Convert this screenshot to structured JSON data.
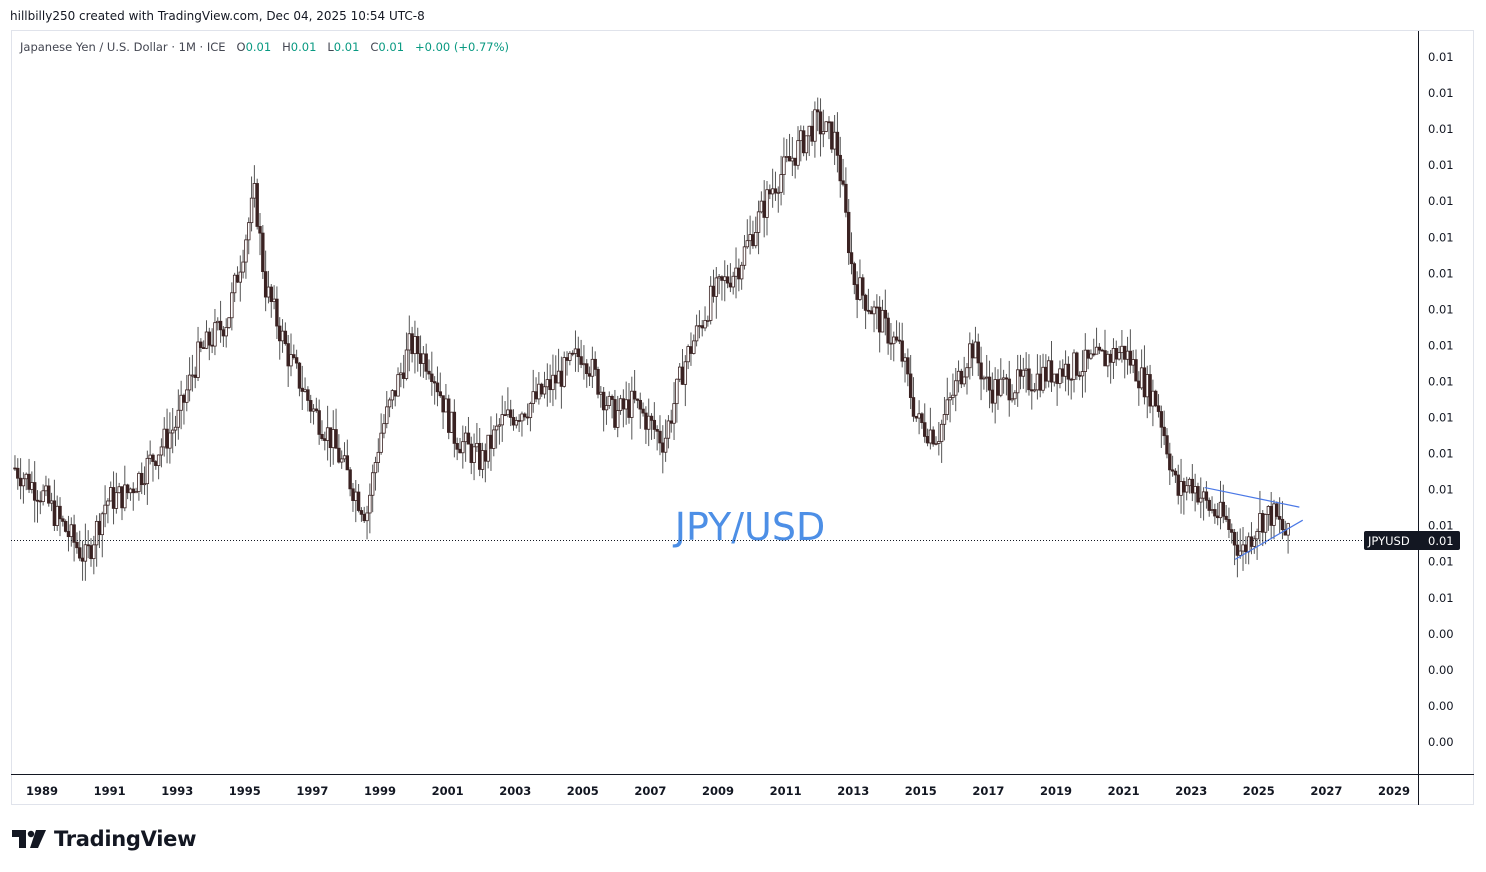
{
  "credit_line": "hillbilly250 created with TradingView.com, Dec 04, 2025 10:54 UTC-8",
  "legend": {
    "symbol": "Japanese Yen / U.S. Dollar · 1M · ICE",
    "open_label": "O",
    "open": "0.01",
    "high_label": "H",
    "high": "0.01",
    "low_label": "L",
    "low": "0.01",
    "close_label": "C",
    "close": "0.01",
    "change": "+0.00 (+0.77%)"
  },
  "watermark": "JPY/USD",
  "brand": "TradingView",
  "price_badge": {
    "symbol": "JPYUSD",
    "value": "0.01"
  },
  "colors": {
    "candle_up": "#ffffff",
    "candle_body": "#3a2222",
    "wick": "#555555",
    "trendline": "#4a78e6",
    "badge_bg": "#131722",
    "watermark": "#4d8fe6"
  },
  "icons": {
    "brand_logo": "tradingview-logo-icon"
  },
  "chart_data": {
    "type": "candlestick",
    "interval": "1M",
    "y_axis_labels": [
      "0.01",
      "0.01",
      "0.01",
      "0.01",
      "0.01",
      "0.01",
      "0.01",
      "0.01",
      "0.01",
      "0.01",
      "0.01",
      "0.01",
      "0.01",
      "0.01",
      "0.01",
      "0.01",
      "0.00",
      "0.00",
      "0.00",
      "0.00"
    ],
    "x_axis_labels": [
      "1989",
      "1991",
      "1993",
      "1995",
      "1997",
      "1999",
      "2001",
      "2003",
      "2005",
      "2007",
      "2009",
      "2011",
      "2013",
      "2015",
      "2017",
      "2019",
      "2021",
      "2023",
      "2025",
      "2027",
      "2029"
    ],
    "ylim": [
      0.0035,
      0.014
    ],
    "current_price": 0.0066,
    "series": [
      {
        "name": "JPYUSD",
        "points": [
          [
            1988.2,
            0.0077
          ],
          [
            1989.0,
            0.0073
          ],
          [
            1989.5,
            0.0069
          ],
          [
            1990.3,
            0.0063
          ],
          [
            1990.9,
            0.0072
          ],
          [
            1991.5,
            0.0073
          ],
          [
            1992.2,
            0.0078
          ],
          [
            1993.0,
            0.0084
          ],
          [
            1993.6,
            0.0094
          ],
          [
            1994.5,
            0.01
          ],
          [
            1995.3,
            0.0119
          ],
          [
            1995.6,
            0.0105
          ],
          [
            1996.3,
            0.0094
          ],
          [
            1997.0,
            0.0086
          ],
          [
            1997.5,
            0.0082
          ],
          [
            1998.2,
            0.0074
          ],
          [
            1998.6,
            0.007
          ],
          [
            1999.0,
            0.0082
          ],
          [
            1999.9,
            0.0096
          ],
          [
            2000.5,
            0.0093
          ],
          [
            2001.2,
            0.0082
          ],
          [
            2002.0,
            0.0078
          ],
          [
            2002.6,
            0.0084
          ],
          [
            2003.5,
            0.0087
          ],
          [
            2004.5,
            0.0092
          ],
          [
            2005.0,
            0.0095
          ],
          [
            2005.9,
            0.0085
          ],
          [
            2006.5,
            0.0087
          ],
          [
            2007.4,
            0.0081
          ],
          [
            2008.0,
            0.0093
          ],
          [
            2008.8,
            0.0103
          ],
          [
            2009.6,
            0.0108
          ],
          [
            2010.6,
            0.012
          ],
          [
            2011.5,
            0.0127
          ],
          [
            2011.9,
            0.013
          ],
          [
            2012.5,
            0.0127
          ],
          [
            2013.0,
            0.0106
          ],
          [
            2013.6,
            0.0101
          ],
          [
            2014.4,
            0.0095
          ],
          [
            2014.9,
            0.0084
          ],
          [
            2015.5,
            0.0082
          ],
          [
            2016.5,
            0.0096
          ],
          [
            2017.0,
            0.0089
          ],
          [
            2018.0,
            0.009
          ],
          [
            2019.0,
            0.0092
          ],
          [
            2020.0,
            0.0093
          ],
          [
            2021.0,
            0.0095
          ],
          [
            2021.5,
            0.0091
          ],
          [
            2022.0,
            0.0087
          ],
          [
            2022.6,
            0.0073
          ],
          [
            2023.0,
            0.0075
          ],
          [
            2023.5,
            0.0071
          ],
          [
            2024.0,
            0.0069
          ],
          [
            2024.5,
            0.0064
          ],
          [
            2025.0,
            0.0069
          ],
          [
            2025.4,
            0.007
          ],
          [
            2025.9,
            0.0066
          ]
        ]
      }
    ],
    "trendlines": [
      {
        "from": [
          2023.4,
          0.0074
        ],
        "to": [
          2026.2,
          0.0071
        ]
      },
      {
        "from": [
          2024.3,
          0.0063
        ],
        "to": [
          2026.3,
          0.0069
        ]
      }
    ]
  }
}
